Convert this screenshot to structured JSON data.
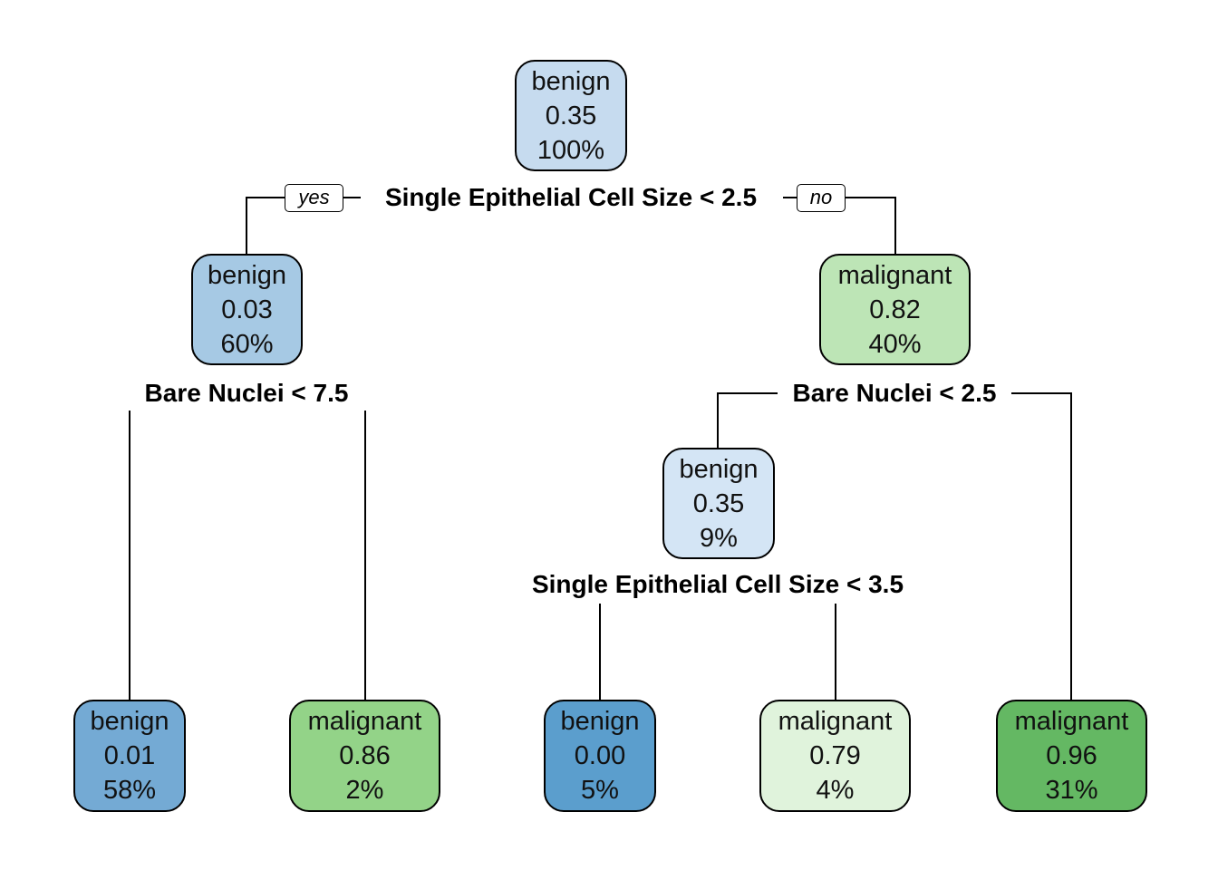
{
  "colors": {
    "benign_scale": [
      "#cfe1f2",
      "#a7c9e4",
      "#73aad3",
      "#5b9ecb"
    ],
    "malignant_scale": [
      "#e0f3dc",
      "#bce4b5",
      "#93d389",
      "#64b864"
    ],
    "line": "#000000"
  },
  "branch_tags": {
    "yes": "yes",
    "no": "no"
  },
  "nodes": [
    {
      "id": "n1",
      "label": "benign",
      "prob": "0.35",
      "pct": "100%",
      "fill": "#c6dbef"
    },
    {
      "id": "n2",
      "label": "benign",
      "prob": "0.03",
      "pct": "60%",
      "fill": "#a6c9e4"
    },
    {
      "id": "n3",
      "label": "malignant",
      "prob": "0.82",
      "pct": "40%",
      "fill": "#bde5b6"
    },
    {
      "id": "n6",
      "label": "benign",
      "prob": "0.35",
      "pct": "9%",
      "fill": "#d4e5f5"
    },
    {
      "id": "l1",
      "label": "benign",
      "prob": "0.01",
      "pct": "58%",
      "fill": "#74aad4"
    },
    {
      "id": "l2",
      "label": "malignant",
      "prob": "0.86",
      "pct": "2%",
      "fill": "#93d388"
    },
    {
      "id": "l3",
      "label": "benign",
      "prob": "0.00",
      "pct": "5%",
      "fill": "#5b9ecd"
    },
    {
      "id": "l4",
      "label": "malignant",
      "prob": "0.79",
      "pct": "4%",
      "fill": "#e0f3dc"
    },
    {
      "id": "l5",
      "label": "malignant",
      "prob": "0.96",
      "pct": "31%",
      "fill": "#64b863"
    }
  ],
  "splits": [
    {
      "id": "s1",
      "text": "Single Epithelial Cell Size < 2.5"
    },
    {
      "id": "s2",
      "text": "Bare Nuclei < 7.5"
    },
    {
      "id": "s3",
      "text": "Bare Nuclei < 2.5"
    },
    {
      "id": "s4",
      "text": "Single Epithelial Cell Size < 3.5"
    }
  ]
}
